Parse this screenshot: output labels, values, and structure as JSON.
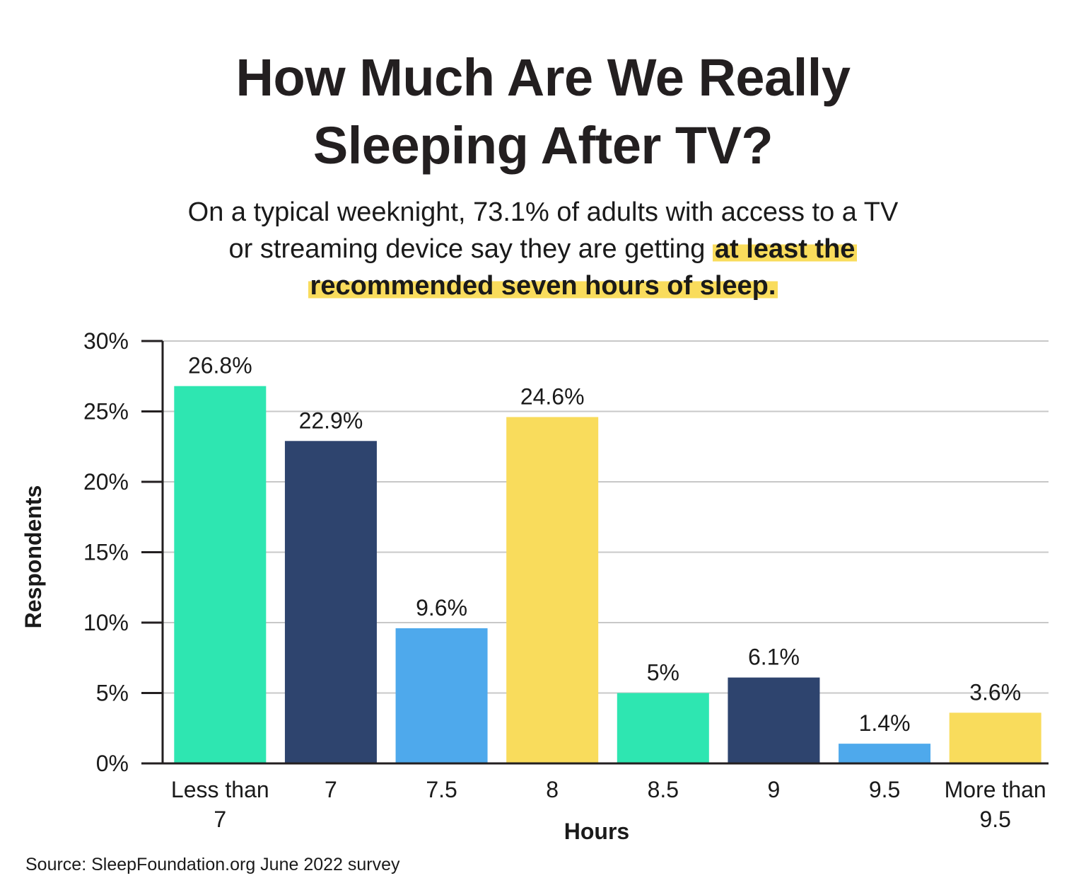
{
  "title_lines": [
    "How Much Are We Really",
    "Sleeping After TV?"
  ],
  "subtitle": {
    "line1": "On a typical weeknight, 73.1% of adults with access to a TV",
    "line2_plain": "or streaming device say they are getting ",
    "line2_highlight": "at least the",
    "line3_highlight": "recommended seven hours of sleep."
  },
  "source": "Source: SleepFoundation.org June 2022 survey",
  "colors": {
    "green": "#2ee6b1",
    "navy": "#2e446e",
    "blue": "#4ea9ec",
    "yellow": "#f9dc5c",
    "highlight": "#f9dc5c"
  },
  "chart_data": {
    "type": "bar",
    "title": "How Much Are We Really Sleeping After TV?",
    "xlabel": "Hours",
    "ylabel": "Respondents",
    "ylim": [
      0,
      30
    ],
    "yticks": [
      0,
      5,
      10,
      15,
      20,
      25,
      30
    ],
    "ytick_labels": [
      "0%",
      "5%",
      "10%",
      "15%",
      "20%",
      "25%",
      "30%"
    ],
    "grid": true,
    "categories": [
      [
        "Less than",
        "7"
      ],
      [
        "7"
      ],
      [
        "7.5"
      ],
      [
        "8"
      ],
      [
        "8.5"
      ],
      [
        "9"
      ],
      [
        "9.5"
      ],
      [
        "More than",
        "9.5"
      ]
    ],
    "values": [
      26.8,
      22.9,
      9.6,
      24.6,
      5,
      6.1,
      1.4,
      3.6
    ],
    "data_labels": [
      "26.8%",
      "22.9%",
      "9.6%",
      "24.6%",
      "5%",
      "6.1%",
      "1.4%",
      "3.6%"
    ],
    "bar_colors": [
      "#2ee6b1",
      "#2e446e",
      "#4ea9ec",
      "#f9dc5c",
      "#2ee6b1",
      "#2e446e",
      "#4ea9ec",
      "#f9dc5c"
    ]
  }
}
